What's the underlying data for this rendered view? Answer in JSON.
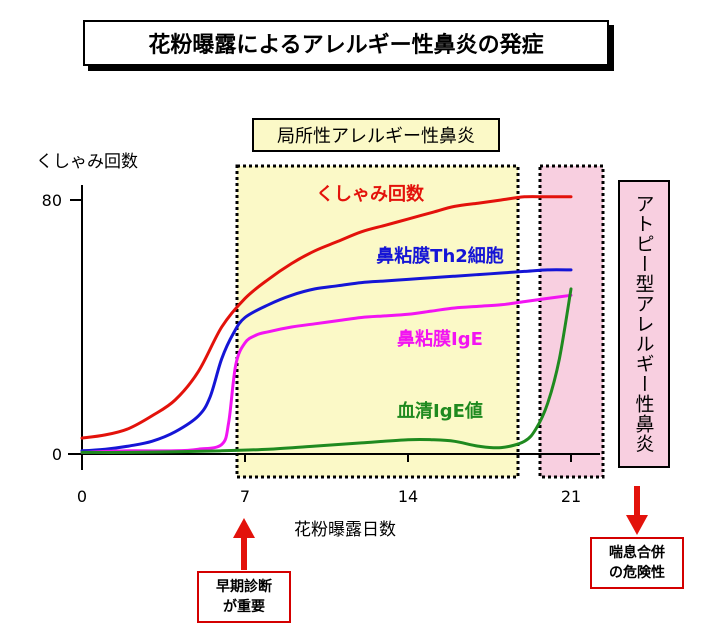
{
  "title": "花粉曝露によるアレルギー性鼻炎の発症",
  "phase_label": "局所性アレルギー性鼻炎",
  "atopic_label": "アトピー型アレルギー性鼻炎",
  "chart_data": {
    "type": "line",
    "title": "花粉曝露によるアレルギー性鼻炎の発症",
    "xlabel": "花粉曝露日数",
    "ylabel": "くしゃみ回数",
    "xlim": [
      0,
      23
    ],
    "ylim": [
      0,
      90
    ],
    "x_ticks": [
      0,
      7,
      14,
      21
    ],
    "y_ticks": [
      0,
      80
    ],
    "series": [
      {
        "name": "くしゃみ回数",
        "color": "#e3120b",
        "x": [
          0,
          1,
          2,
          3,
          4,
          5,
          6,
          7,
          8,
          9,
          10,
          11,
          12,
          13,
          14,
          15,
          16,
          17,
          18,
          19,
          20,
          21
        ],
        "values": [
          5,
          6,
          8,
          12,
          17,
          26,
          40,
          49,
          55,
          60,
          64,
          67,
          70,
          72,
          74,
          76,
          78,
          79,
          80,
          81,
          81,
          81
        ]
      },
      {
        "name": "鼻粘膜Th2細胞",
        "color": "#1515d6",
        "x": [
          0,
          1,
          2,
          3,
          4,
          5,
          5.5,
          6,
          6.5,
          7,
          8,
          9,
          10,
          11,
          12,
          13,
          14,
          15,
          16,
          17,
          18,
          19,
          20,
          21
        ],
        "values": [
          1,
          1.5,
          2.5,
          4,
          7,
          12,
          18,
          30,
          38,
          43,
          47,
          50,
          52,
          53,
          54,
          54.5,
          55,
          55.5,
          56,
          56.5,
          57,
          57.5,
          58,
          58
        ]
      },
      {
        "name": "鼻粘膜IgE",
        "color": "#f214f2",
        "x": [
          0,
          2,
          4,
          5,
          6,
          6.3,
          6.6,
          7,
          7.5,
          8,
          9,
          10,
          11,
          12,
          13,
          14,
          15,
          16,
          17,
          18,
          19,
          20,
          21
        ],
        "values": [
          0.5,
          1,
          1,
          1.5,
          3,
          10,
          28,
          35,
          37.5,
          38.5,
          40,
          41,
          42,
          43,
          43.5,
          44,
          45,
          46,
          46.5,
          47,
          48,
          49,
          50
        ]
      },
      {
        "name": "血清IgE値",
        "color": "#1f8a1f",
        "x": [
          0,
          2,
          4,
          6,
          8,
          10,
          12,
          14,
          15,
          16,
          17,
          18,
          19,
          19.5,
          20,
          20.5,
          21
        ],
        "values": [
          0.5,
          0.5,
          0.7,
          1,
          1.5,
          2.5,
          3.5,
          4.5,
          4.5,
          4,
          2.5,
          2,
          4,
          8,
          16,
          30,
          52
        ]
      }
    ],
    "annotations": [
      {
        "text": "早期診断\nが重要",
        "at_x": 7
      },
      {
        "text": "喘息合併\nの危険性",
        "at_x": 21
      }
    ],
    "legend": "inline labels"
  }
}
